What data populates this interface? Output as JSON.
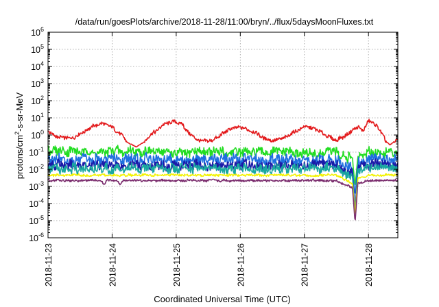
{
  "chart_data": {
    "type": "line",
    "title": "/data/run/goesPlots/archive/2018-11-28/11:00/bryn/../flux/5daysMoonFluxes.txt",
    "xlabel": "Coordinated Universal Time (UTC)",
    "ylabel": {
      "base": "protons/cm",
      "sup": "2",
      "rest": "-s-sr-MeV"
    },
    "yscale": "log",
    "ylim": [
      1e-06,
      1000000.0
    ],
    "xlim": [
      "2018-11-23T00:00",
      "2018-11-28T11:00"
    ],
    "xticks": [
      "2018-11-23",
      "2018-11-24",
      "2018-11-25",
      "2018-11-26",
      "2018-11-27",
      "2018-11-28"
    ],
    "yticks": [
      {
        "base": "10",
        "exp": "-6"
      },
      {
        "base": "10",
        "exp": "-5"
      },
      {
        "base": "10",
        "exp": "-4"
      },
      {
        "base": "10",
        "exp": "-3"
      },
      {
        "base": "10",
        "exp": "-2"
      },
      {
        "base": "10",
        "exp": "-1"
      },
      {
        "base": "10",
        "exp": "0"
      },
      {
        "base": "10",
        "exp": "1"
      },
      {
        "base": "10",
        "exp": "2"
      },
      {
        "base": "10",
        "exp": "3"
      },
      {
        "base": "10",
        "exp": "4"
      },
      {
        "base": "10",
        "exp": "5"
      },
      {
        "base": "10",
        "exp": "6"
      }
    ],
    "grid": true,
    "series": [
      {
        "color": "#e31a1c",
        "values": [
          [
            "2018-11-23T00:00",
            1.6
          ],
          [
            "2018-11-23T04:00",
            0.7
          ],
          [
            "2018-11-23T08:00",
            0.6
          ],
          [
            "2018-11-23T12:00",
            1.1
          ],
          [
            "2018-11-23T16:00",
            2.8
          ],
          [
            "2018-11-23T20:00",
            5.0
          ],
          [
            "2018-11-24T00:00",
            3.0
          ],
          [
            "2018-11-24T04:00",
            0.8
          ],
          [
            "2018-11-24T06:00",
            0.35
          ],
          [
            "2018-11-24T09:00",
            0.2
          ],
          [
            "2018-11-24T12:00",
            0.4
          ],
          [
            "2018-11-24T15:00",
            1.2
          ],
          [
            "2018-11-24T19:00",
            3.5
          ],
          [
            "2018-11-24T23:00",
            6.5
          ],
          [
            "2018-11-25T02:00",
            4.5
          ],
          [
            "2018-11-25T05:00",
            1.2
          ],
          [
            "2018-11-25T08:00",
            0.5
          ],
          [
            "2018-11-25T12:00",
            0.4
          ],
          [
            "2018-11-25T16:00",
            0.8
          ],
          [
            "2018-11-25T20:00",
            2.2
          ],
          [
            "2018-11-26T00:00",
            3.0
          ],
          [
            "2018-11-26T04:00",
            1.8
          ],
          [
            "2018-11-26T08:00",
            0.8
          ],
          [
            "2018-11-26T12:00",
            0.45
          ],
          [
            "2018-11-26T16:00",
            0.6
          ],
          [
            "2018-11-26T20:00",
            1.5
          ],
          [
            "2018-11-27T00:00",
            3.0
          ],
          [
            "2018-11-27T04:00",
            2.2
          ],
          [
            "2018-11-27T08:00",
            1.0
          ],
          [
            "2018-11-27T12:00",
            0.5
          ],
          [
            "2018-11-27T16:00",
            1.0
          ],
          [
            "2018-11-27T18:00",
            1.8
          ],
          [
            "2018-11-27T20:00",
            3.2
          ],
          [
            "2018-11-27T22:00",
            1.5
          ],
          [
            "2018-11-28T00:00",
            7.0
          ],
          [
            "2018-11-28T03:00",
            3.5
          ],
          [
            "2018-11-28T06:00",
            0.6
          ],
          [
            "2018-11-28T08:00",
            0.25
          ],
          [
            "2018-11-28T11:00",
            0.6
          ]
        ]
      },
      {
        "color": "#22dd22",
        "values": [
          [
            "2018-11-23T00:00",
            0.12
          ],
          [
            "2018-11-23T12:00",
            0.1
          ],
          [
            "2018-11-24T00:00",
            0.11
          ],
          [
            "2018-11-24T12:00",
            0.12
          ],
          [
            "2018-11-25T00:00",
            0.09
          ],
          [
            "2018-11-25T12:00",
            0.1
          ],
          [
            "2018-11-26T00:00",
            0.09
          ],
          [
            "2018-11-26T12:00",
            0.1
          ],
          [
            "2018-11-27T00:00",
            0.09
          ],
          [
            "2018-11-27T12:00",
            0.09
          ],
          [
            "2018-11-27T18:00",
            0.04
          ],
          [
            "2018-11-27T19:00",
            0.001
          ],
          [
            "2018-11-27T20:00",
            0.05
          ],
          [
            "2018-11-28T00:00",
            0.1
          ],
          [
            "2018-11-28T11:00",
            0.1
          ]
        ]
      },
      {
        "color": "#1e6fe0",
        "values": [
          [
            "2018-11-23T00:00",
            0.04
          ],
          [
            "2018-11-23T12:00",
            0.035
          ],
          [
            "2018-11-24T00:00",
            0.04
          ],
          [
            "2018-11-24T12:00",
            0.038
          ],
          [
            "2018-11-25T00:00",
            0.035
          ],
          [
            "2018-11-25T12:00",
            0.035
          ],
          [
            "2018-11-26T00:00",
            0.036
          ],
          [
            "2018-11-26T12:00",
            0.035
          ],
          [
            "2018-11-27T00:00",
            0.035
          ],
          [
            "2018-11-27T12:00",
            0.03
          ],
          [
            "2018-11-27T18:00",
            0.01
          ],
          [
            "2018-11-27T19:00",
            0.0003
          ],
          [
            "2018-11-27T20:00",
            0.02
          ],
          [
            "2018-11-28T00:00",
            0.04
          ],
          [
            "2018-11-28T11:00",
            0.04
          ]
        ]
      },
      {
        "color": "#1a1aa8",
        "values": [
          [
            "2018-11-23T00:00",
            0.018
          ],
          [
            "2018-11-23T12:00",
            0.017
          ],
          [
            "2018-11-24T00:00",
            0.018
          ],
          [
            "2018-11-24T12:00",
            0.017
          ],
          [
            "2018-11-25T00:00",
            0.016
          ],
          [
            "2018-11-25T12:00",
            0.017
          ],
          [
            "2018-11-26T00:00",
            0.017
          ],
          [
            "2018-11-26T12:00",
            0.016
          ],
          [
            "2018-11-27T00:00",
            0.017
          ],
          [
            "2018-11-27T12:00",
            0.016
          ],
          [
            "2018-11-27T18:00",
            0.005
          ],
          [
            "2018-11-27T19:00",
            5e-05
          ],
          [
            "2018-11-27T20:00",
            0.01
          ],
          [
            "2018-11-28T00:00",
            0.018
          ],
          [
            "2018-11-28T11:00",
            0.018
          ]
        ]
      },
      {
        "color": "#1aa8a0",
        "values": [
          [
            "2018-11-23T00:00",
            0.012
          ],
          [
            "2018-11-23T12:00",
            0.011
          ],
          [
            "2018-11-24T00:00",
            0.012
          ],
          [
            "2018-11-24T12:00",
            0.011
          ],
          [
            "2018-11-25T00:00",
            0.011
          ],
          [
            "2018-11-25T12:00",
            0.011
          ],
          [
            "2018-11-26T00:00",
            0.011
          ],
          [
            "2018-11-26T12:00",
            0.011
          ],
          [
            "2018-11-27T00:00",
            0.011
          ],
          [
            "2018-11-27T12:00",
            0.011
          ],
          [
            "2018-11-27T18:00",
            0.004
          ],
          [
            "2018-11-27T19:00",
            2e-05
          ],
          [
            "2018-11-27T20:00",
            0.008
          ],
          [
            "2018-11-28T00:00",
            0.012
          ],
          [
            "2018-11-28T11:00",
            0.012
          ]
        ]
      },
      {
        "color": "#f2f200",
        "values": [
          [
            "2018-11-23T00:00",
            0.0045
          ],
          [
            "2018-11-23T12:00",
            0.0045
          ],
          [
            "2018-11-24T00:00",
            0.0045
          ],
          [
            "2018-11-24T12:00",
            0.0045
          ],
          [
            "2018-11-25T00:00",
            0.0045
          ],
          [
            "2018-11-25T12:00",
            0.0045
          ],
          [
            "2018-11-26T00:00",
            0.0045
          ],
          [
            "2018-11-26T12:00",
            0.0045
          ],
          [
            "2018-11-27T00:00",
            0.0045
          ],
          [
            "2018-11-27T12:00",
            0.0045
          ],
          [
            "2018-11-27T18:00",
            0.0015
          ],
          [
            "2018-11-27T19:00",
            2e-05
          ],
          [
            "2018-11-27T20:00",
            0.003
          ],
          [
            "2018-11-28T00:00",
            0.0045
          ],
          [
            "2018-11-28T11:00",
            0.0045
          ]
        ]
      },
      {
        "color": "#7b2d6e",
        "values": [
          [
            "2018-11-23T00:00",
            0.0022
          ],
          [
            "2018-11-23T12:00",
            0.0022
          ],
          [
            "2018-11-23T20:00",
            0.0022
          ],
          [
            "2018-11-23T21:00",
            0.0012
          ],
          [
            "2018-11-23T22:00",
            0.0022
          ],
          [
            "2018-11-24T02:00",
            0.0022
          ],
          [
            "2018-11-24T03:00",
            0.0012
          ],
          [
            "2018-11-24T04:00",
            0.0022
          ],
          [
            "2018-11-25T00:00",
            0.0022
          ],
          [
            "2018-11-25T12:00",
            0.0022
          ],
          [
            "2018-11-26T00:00",
            0.0022
          ],
          [
            "2018-11-26T12:00",
            0.0022
          ],
          [
            "2018-11-27T00:00",
            0.0022
          ],
          [
            "2018-11-27T12:00",
            0.0022
          ],
          [
            "2018-11-27T18:00",
            0.0008
          ],
          [
            "2018-11-27T19:00",
            7.5e-06
          ],
          [
            "2018-11-27T20:00",
            0.0015
          ],
          [
            "2018-11-28T00:00",
            0.0022
          ],
          [
            "2018-11-28T11:00",
            0.0022
          ]
        ]
      }
    ]
  }
}
